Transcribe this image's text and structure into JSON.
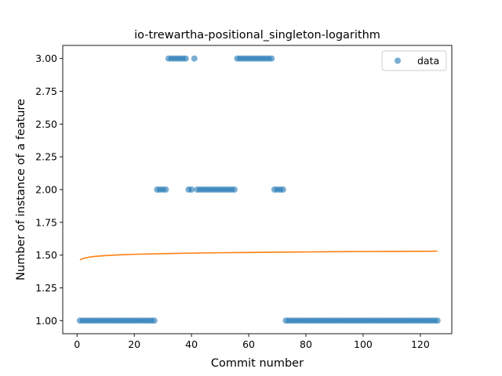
{
  "chart_data": {
    "type": "scatter",
    "title": "io-trewartha-positional_singleton-logarithm",
    "xlabel": "Commit number",
    "ylabel": "Number of instance of a feature",
    "xlim": [
      -5,
      131
    ],
    "ylim": [
      0.9,
      3.1
    ],
    "xticks": [
      0,
      20,
      40,
      60,
      80,
      100,
      120
    ],
    "yticks": [
      1.0,
      1.25,
      1.5,
      1.75,
      2.0,
      2.25,
      2.5,
      2.75,
      3.0
    ],
    "xtick_labels": [
      "0",
      "20",
      "40",
      "60",
      "80",
      "100",
      "120"
    ],
    "ytick_labels": [
      "1.00",
      "1.25",
      "1.50",
      "1.75",
      "2.00",
      "2.25",
      "2.50",
      "2.75",
      "3.00"
    ],
    "grid": false,
    "legend": {
      "position": "top-right",
      "entries": [
        "data"
      ]
    },
    "colors": {
      "data": "#1f77b4",
      "fit": "#ff7f0e"
    },
    "series": [
      {
        "name": "data",
        "kind": "scatter",
        "x": [
          1,
          2,
          3,
          4,
          5,
          6,
          7,
          8,
          9,
          10,
          11,
          12,
          13,
          14,
          15,
          16,
          17,
          18,
          19,
          20,
          21,
          22,
          23,
          24,
          25,
          26,
          27,
          28,
          29,
          30,
          31,
          32,
          33,
          34,
          35,
          36,
          37,
          38,
          39,
          40,
          41,
          42,
          43,
          44,
          45,
          46,
          47,
          48,
          49,
          50,
          51,
          52,
          53,
          54,
          55,
          56,
          57,
          58,
          59,
          60,
          61,
          62,
          63,
          64,
          65,
          66,
          67,
          68,
          69,
          70,
          71,
          72,
          73,
          74,
          75,
          76,
          77,
          78,
          79,
          80,
          81,
          82,
          83,
          84,
          85,
          86,
          87,
          88,
          89,
          90,
          91,
          92,
          93,
          94,
          95,
          96,
          97,
          98,
          99,
          100,
          101,
          102,
          103,
          104,
          105,
          106,
          107,
          108,
          109,
          110,
          111,
          112,
          113,
          114,
          115,
          116,
          117,
          118,
          119,
          120,
          121,
          122,
          123,
          124,
          125,
          126
        ],
        "y": [
          1,
          1,
          1,
          1,
          1,
          1,
          1,
          1,
          1,
          1,
          1,
          1,
          1,
          1,
          1,
          1,
          1,
          1,
          1,
          1,
          1,
          1,
          1,
          1,
          1,
          1,
          1,
          2,
          2,
          2,
          2,
          3,
          3,
          3,
          3,
          3,
          3,
          3,
          2,
          2,
          3,
          2,
          2,
          2,
          2,
          2,
          2,
          2,
          2,
          2,
          2,
          2,
          2,
          2,
          2,
          3,
          3,
          3,
          3,
          3,
          3,
          3,
          3,
          3,
          3,
          3,
          3,
          3,
          2,
          2,
          2,
          2,
          1,
          1,
          1,
          1,
          1,
          1,
          1,
          1,
          1,
          1,
          1,
          1,
          1,
          1,
          1,
          1,
          1,
          1,
          1,
          1,
          1,
          1,
          1,
          1,
          1,
          1,
          1,
          1,
          1,
          1,
          1,
          1,
          1,
          1,
          1,
          1,
          1,
          1,
          1,
          1,
          1,
          1,
          1,
          1,
          1,
          1,
          1,
          1,
          1,
          1,
          1,
          1,
          1,
          1
        ]
      },
      {
        "name": "",
        "kind": "line",
        "x": [
          1,
          2,
          3,
          4,
          5,
          6,
          8,
          10,
          15,
          20,
          30,
          40,
          50,
          60,
          70,
          80,
          90,
          100,
          110,
          120,
          126
        ],
        "y": [
          1.463,
          1.473,
          1.479,
          1.483,
          1.487,
          1.489,
          1.493,
          1.496,
          1.502,
          1.506,
          1.511,
          1.515,
          1.518,
          1.52,
          1.522,
          1.524,
          1.526,
          1.527,
          1.528,
          1.529,
          1.53
        ]
      }
    ]
  }
}
